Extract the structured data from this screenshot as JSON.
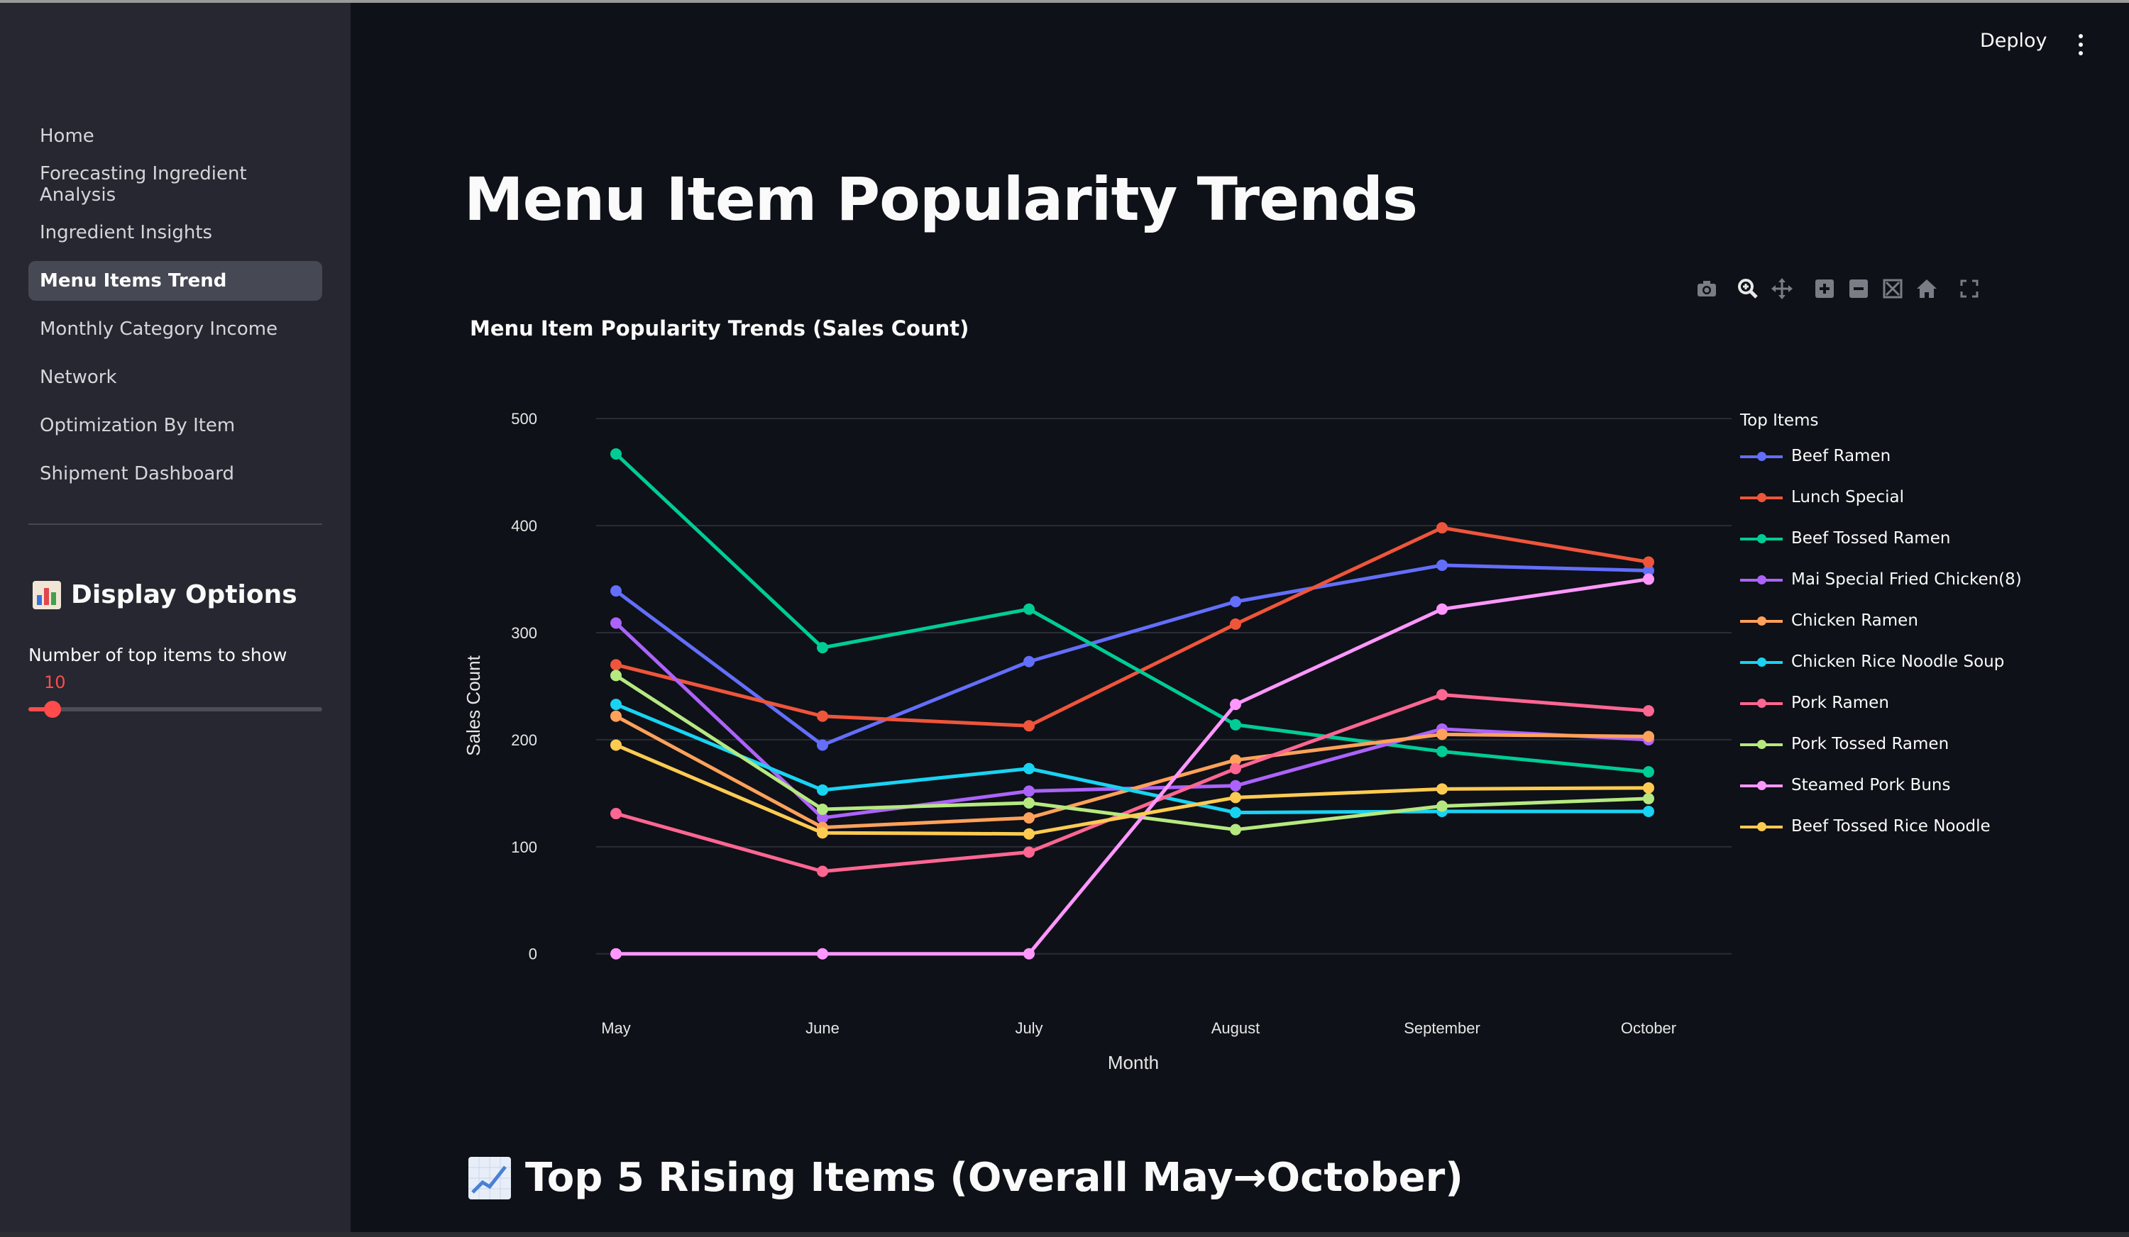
{
  "app": {
    "deploy_label": "Deploy"
  },
  "sidebar": {
    "items": [
      {
        "label": "Home"
      },
      {
        "label": "Forecasting Ingredient Analysis"
      },
      {
        "label": "Ingredient Insights"
      },
      {
        "label": "Menu Items Trend",
        "active": true
      },
      {
        "label": "Monthly Category Income"
      },
      {
        "label": "Network"
      },
      {
        "label": "Optimization By Item"
      },
      {
        "label": "Shipment Dashboard"
      }
    ],
    "display_options": {
      "title": "Display Options",
      "slider_label": "Number of top items to show",
      "slider_value": "10"
    }
  },
  "main": {
    "title": "Menu Item Popularity Trends",
    "section2_title": "Top 5 Rising Items (Overall May→October)"
  },
  "chart_data": {
    "type": "line",
    "title": "Menu Item Popularity Trends (Sales Count)",
    "xlabel": "Month",
    "ylabel": "Sales Count",
    "x": [
      "May",
      "June",
      "July",
      "August",
      "September",
      "October"
    ],
    "y_ticks": [
      0,
      100,
      200,
      300,
      400,
      500
    ],
    "ylim": [
      -30,
      520
    ],
    "grid": true,
    "legend_title": "Top Items",
    "legend_position": "right",
    "series": [
      {
        "name": "Beef Ramen",
        "color": "#636efa",
        "values": [
          339,
          195,
          273,
          329,
          363,
          358
        ]
      },
      {
        "name": "Lunch Special",
        "color": "#ef553b",
        "values": [
          270,
          222,
          213,
          308,
          398,
          366
        ]
      },
      {
        "name": "Beef Tossed Ramen",
        "color": "#00cc96",
        "values": [
          467,
          286,
          322,
          214,
          189,
          170
        ]
      },
      {
        "name": "Mai Special Fried Chicken(8)",
        "color": "#ab63fa",
        "values": [
          309,
          127,
          152,
          157,
          210,
          200
        ]
      },
      {
        "name": "Chicken Ramen",
        "color": "#ffa15a",
        "values": [
          222,
          118,
          127,
          181,
          205,
          203
        ]
      },
      {
        "name": "Chicken Rice Noodle Soup",
        "color": "#19d3f3",
        "values": [
          233,
          153,
          173,
          132,
          133,
          133
        ]
      },
      {
        "name": "Pork Ramen",
        "color": "#ff6692",
        "values": [
          131,
          77,
          95,
          173,
          242,
          227
        ]
      },
      {
        "name": "Pork Tossed Ramen",
        "color": "#b6e880",
        "values": [
          260,
          135,
          141,
          116,
          138,
          145
        ]
      },
      {
        "name": "Steamed Pork Buns",
        "color": "#ff97ff",
        "values": [
          0,
          0,
          0,
          233,
          322,
          350
        ]
      },
      {
        "name": "Beef Tossed Rice Noodle",
        "color": "#fecb52",
        "values": [
          195,
          113,
          112,
          146,
          154,
          155
        ]
      }
    ]
  }
}
